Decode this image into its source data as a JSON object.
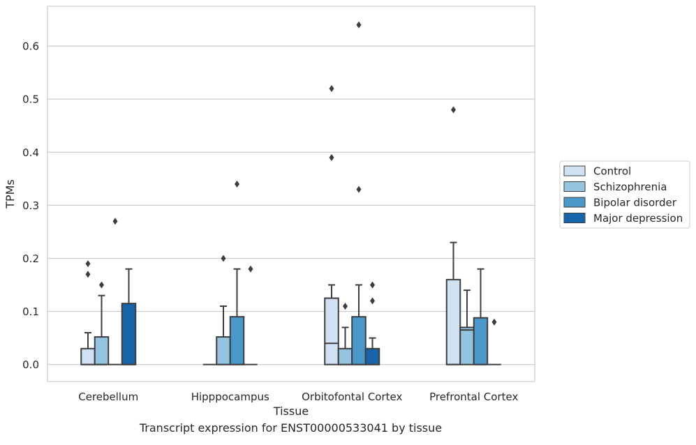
{
  "chart_data": {
    "type": "box",
    "xlabel": "Tissue",
    "ylabel": "TPMs",
    "caption": "Transcript expression for ENST00000533041 by tissue",
    "categories": [
      "Cerebellum",
      "Hipppocampus",
      "Orbitofontal Cortex",
      "Prefrontal Cortex"
    ],
    "ylim": [
      -0.032,
      0.675
    ],
    "yticks": [
      0.0,
      0.1,
      0.2,
      0.3,
      0.4,
      0.5,
      0.6
    ],
    "ytick_labels": [
      "0.0",
      "0.1",
      "0.2",
      "0.3",
      "0.4",
      "0.5",
      "0.6"
    ],
    "grid": true,
    "legend_position": "right",
    "series": [
      {
        "name": "Control",
        "color": "#d0e1f2",
        "boxes": [
          {
            "q1": 0.0,
            "median": 0.0,
            "q3": 0.03,
            "whislo": 0.0,
            "whishi": 0.06,
            "fliers": [
              0.17,
              0.19
            ]
          },
          {
            "q1": 0.0,
            "median": 0.0,
            "q3": 0.0,
            "whislo": 0.0,
            "whishi": 0.0,
            "fliers": []
          },
          {
            "q1": 0.0,
            "median": 0.04,
            "q3": 0.125,
            "whislo": 0.0,
            "whishi": 0.15,
            "fliers": [
              0.39,
              0.52
            ]
          },
          {
            "q1": 0.0,
            "median": 0.0,
            "q3": 0.16,
            "whislo": 0.0,
            "whishi": 0.23,
            "fliers": [
              0.48
            ]
          }
        ]
      },
      {
        "name": "Schizophrenia",
        "color": "#94c4df",
        "boxes": [
          {
            "q1": 0.0,
            "median": 0.0,
            "q3": 0.052,
            "whislo": 0.0,
            "whishi": 0.13,
            "fliers": [
              0.15
            ]
          },
          {
            "q1": 0.0,
            "median": 0.0,
            "q3": 0.052,
            "whislo": 0.0,
            "whishi": 0.11,
            "fliers": [
              0.2
            ]
          },
          {
            "q1": 0.0,
            "median": 0.0,
            "q3": 0.03,
            "whislo": 0.0,
            "whishi": 0.07,
            "fliers": [
              0.11
            ]
          },
          {
            "q1": 0.0,
            "median": 0.065,
            "q3": 0.07,
            "whislo": 0.0,
            "whishi": 0.14,
            "fliers": []
          }
        ]
      },
      {
        "name": "Bipolar disorder",
        "color": "#4a98c9",
        "boxes": [
          {
            "q1": 0.0,
            "median": 0.0,
            "q3": 0.0,
            "whislo": 0.0,
            "whishi": 0.0,
            "fliers": [
              0.27
            ]
          },
          {
            "q1": 0.0,
            "median": 0.0,
            "q3": 0.09,
            "whislo": 0.0,
            "whishi": 0.18,
            "fliers": [
              0.34
            ]
          },
          {
            "q1": 0.0,
            "median": 0.0,
            "q3": 0.09,
            "whislo": 0.0,
            "whishi": 0.15,
            "fliers": [
              0.33,
              0.64
            ]
          },
          {
            "q1": 0.0,
            "median": 0.0,
            "q3": 0.088,
            "whislo": 0.0,
            "whishi": 0.18,
            "fliers": []
          }
        ]
      },
      {
        "name": "Major depression",
        "color": "#1764ab",
        "boxes": [
          {
            "q1": 0.0,
            "median": 0.0,
            "q3": 0.115,
            "whislo": 0.0,
            "whishi": 0.18,
            "fliers": []
          },
          {
            "q1": 0.0,
            "median": 0.0,
            "q3": 0.0,
            "whislo": 0.0,
            "whishi": 0.0,
            "fliers": [
              0.18
            ]
          },
          {
            "q1": 0.0,
            "median": 0.0,
            "q3": 0.03,
            "whislo": 0.0,
            "whishi": 0.05,
            "fliers": [
              0.12,
              0.15
            ]
          },
          {
            "q1": 0.0,
            "median": 0.0,
            "q3": 0.0,
            "whislo": 0.0,
            "whishi": 0.0,
            "fliers": [
              0.08
            ]
          }
        ]
      }
    ]
  }
}
